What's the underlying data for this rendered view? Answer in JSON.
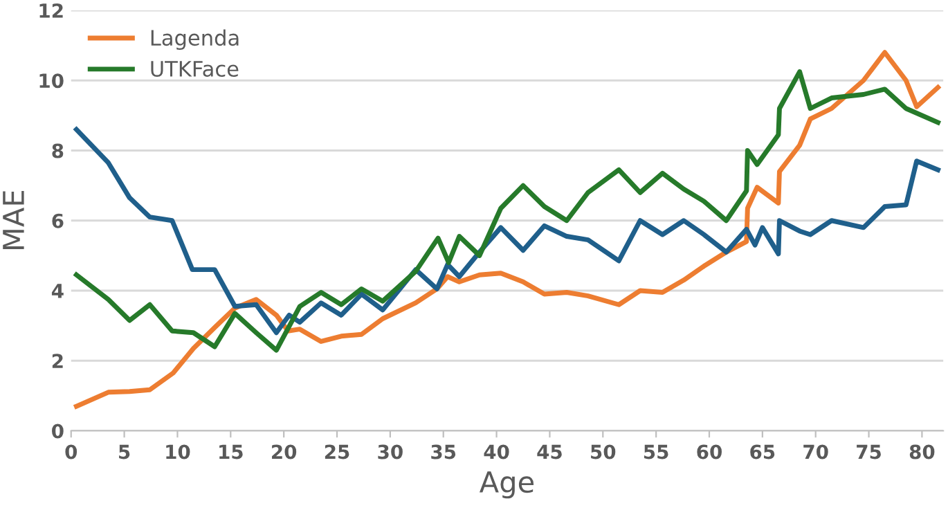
{
  "chart_data": {
    "type": "line",
    "xlabel": "Age",
    "ylabel": "MAE",
    "xlim": [
      0,
      82
    ],
    "ylim": [
      0,
      12
    ],
    "xticks": [
      0,
      5,
      10,
      15,
      20,
      25,
      30,
      35,
      40,
      45,
      50,
      55,
      60,
      65,
      70,
      75,
      80
    ],
    "yticks": [
      0,
      2,
      4,
      6,
      8,
      10,
      12
    ],
    "grid": "y",
    "legend": "top left",
    "marker": "none",
    "line_style": "solid",
    "series": [
      {
        "name": "Lagenda",
        "color": "#ed7d31",
        "x": [
          0.5,
          3.5,
          5.5,
          7.4,
          9.6,
          11.5,
          13.5,
          15.4,
          17.4,
          19.3,
          20.4,
          21.5,
          23.5,
          25.4,
          27.3,
          29.3,
          32.4,
          34.4,
          35.4,
          36.5,
          38.4,
          40.4,
          42.5,
          44.5,
          46.6,
          48.6,
          51.5,
          53.5,
          55.6,
          57.6,
          59.5,
          61.6,
          63.5,
          63.6,
          64.5,
          66.5,
          66.6,
          68.5,
          69.5,
          71.5,
          74.5,
          76.5,
          78.5,
          79.5,
          81.5
        ],
        "values": [
          0.7,
          1.1,
          1.12,
          1.17,
          1.65,
          2.35,
          2.95,
          3.5,
          3.75,
          3.3,
          2.85,
          2.9,
          2.55,
          2.7,
          2.75,
          3.2,
          3.65,
          4.05,
          4.4,
          4.25,
          4.45,
          4.5,
          4.25,
          3.9,
          3.95,
          3.85,
          3.6,
          4.0,
          3.95,
          4.3,
          4.7,
          5.1,
          5.4,
          6.35,
          6.95,
          6.5,
          7.4,
          8.15,
          8.9,
          9.2,
          10.0,
          10.8,
          10.0,
          9.25,
          9.8
        ]
      },
      {
        "color": "#1f5f8b",
        "x": [
          0.5,
          3.5,
          5.5,
          7.4,
          9.5,
          11.4,
          13.5,
          15.4,
          17.4,
          19.3,
          20.5,
          21.5,
          23.5,
          25.4,
          27.3,
          29.3,
          32.4,
          34.4,
          35.4,
          36.5,
          38.4,
          40.4,
          42.5,
          44.5,
          46.6,
          48.6,
          51.5,
          53.5,
          55.6,
          57.6,
          59.5,
          61.6,
          63.5,
          64.3,
          65.0,
          66.5,
          66.6,
          68.5,
          69.5,
          71.5,
          74.5,
          76.5,
          78.5,
          79.5,
          81.5
        ],
        "values": [
          8.6,
          7.65,
          6.65,
          6.1,
          6.0,
          4.6,
          4.6,
          3.55,
          3.6,
          2.8,
          3.3,
          3.1,
          3.65,
          3.3,
          3.9,
          3.45,
          4.6,
          4.05,
          4.75,
          4.4,
          5.1,
          5.8,
          5.15,
          5.85,
          5.55,
          5.45,
          4.85,
          6.0,
          5.6,
          6.0,
          5.6,
          5.1,
          5.75,
          5.3,
          5.8,
          5.05,
          6.0,
          5.7,
          5.6,
          6.0,
          5.8,
          6.4,
          6.45,
          7.7,
          7.45
        ]
      },
      {
        "name": "UTKFace",
        "color": "#267a2a",
        "x": [
          0.5,
          3.5,
          5.5,
          7.4,
          9.5,
          11.5,
          13.5,
          15.4,
          17.4,
          19.3,
          21.5,
          23.5,
          25.4,
          27.3,
          29.3,
          32.4,
          34.5,
          35.5,
          36.5,
          38.4,
          40.4,
          42.5,
          44.5,
          46.6,
          48.6,
          51.5,
          53.5,
          55.6,
          57.6,
          59.5,
          61.6,
          63.5,
          63.6,
          64.5,
          66.5,
          66.6,
          68.5,
          69.5,
          71.5,
          74.5,
          76.5,
          78.5,
          81.5
        ],
        "values": [
          4.45,
          3.75,
          3.15,
          3.6,
          2.85,
          2.8,
          2.4,
          3.35,
          2.8,
          2.3,
          3.55,
          3.95,
          3.6,
          4.05,
          3.7,
          4.55,
          5.5,
          4.8,
          5.55,
          5.0,
          6.35,
          7.0,
          6.4,
          6.0,
          6.8,
          7.45,
          6.8,
          7.35,
          6.9,
          6.55,
          6.0,
          6.85,
          8.0,
          7.6,
          8.45,
          9.2,
          10.25,
          9.2,
          9.5,
          9.6,
          9.75,
          9.2,
          8.8
        ]
      }
    ]
  }
}
